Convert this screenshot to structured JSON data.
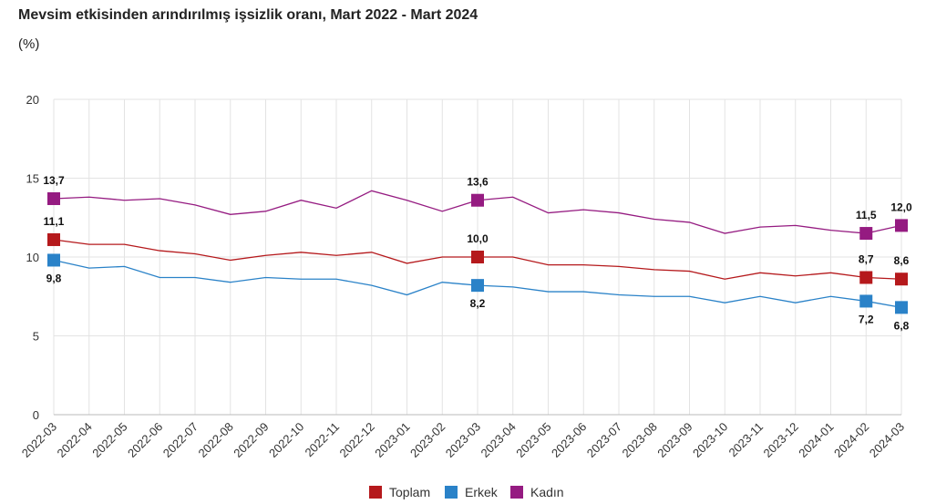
{
  "chart_data": {
    "type": "line",
    "title": "Mevsim etkisinden arındırılmış işsizlik oranı, Mart 2022 - Mart 2024",
    "ylabel": "(%)",
    "ylim": [
      0,
      20
    ],
    "yticks": [
      0,
      5,
      10,
      15,
      20
    ],
    "grid": true,
    "legend": "bottom",
    "x": [
      "2022-03",
      "2022-04",
      "2022-05",
      "2022-06",
      "2022-07",
      "2022-08",
      "2022-09",
      "2022-10",
      "2022-11",
      "2022-12",
      "2023-01",
      "2023-02",
      "2023-03",
      "2023-04",
      "2023-05",
      "2023-06",
      "2023-07",
      "2023-08",
      "2023-09",
      "2023-10",
      "2023-11",
      "2023-12",
      "2024-01",
      "2024-02",
      "2024-03"
    ],
    "series": [
      {
        "name": "Toplam",
        "color": "#b5191c",
        "values": [
          11.1,
          10.8,
          10.8,
          10.4,
          10.2,
          9.8,
          10.1,
          10.3,
          10.1,
          10.3,
          9.6,
          10.0,
          10.0,
          10.0,
          9.5,
          9.5,
          9.4,
          9.2,
          9.1,
          8.6,
          9.0,
          8.8,
          9.0,
          8.7,
          8.6
        ],
        "labels": {
          "0": "11,1",
          "12": "10,0",
          "23": "8,7",
          "24": "8,6"
        },
        "labelPos": "above"
      },
      {
        "name": "Erkek",
        "color": "#2a82c8",
        "values": [
          9.8,
          9.3,
          9.4,
          8.7,
          8.7,
          8.4,
          8.7,
          8.6,
          8.6,
          8.2,
          7.6,
          8.4,
          8.2,
          8.1,
          7.8,
          7.8,
          7.6,
          7.5,
          7.5,
          7.1,
          7.5,
          7.1,
          7.5,
          7.2,
          6.8
        ],
        "labels": {
          "0": "9,8",
          "12": "8,2",
          "23": "7,2",
          "24": "6,8"
        },
        "labelPos": "below"
      },
      {
        "name": "Kadın",
        "color": "#951b81",
        "values": [
          13.7,
          13.8,
          13.6,
          13.7,
          13.3,
          12.7,
          12.9,
          13.6,
          13.1,
          14.2,
          13.6,
          12.9,
          13.6,
          13.8,
          12.8,
          13.0,
          12.8,
          12.4,
          12.2,
          11.5,
          11.9,
          12.0,
          11.7,
          11.5,
          12.0
        ],
        "labels": {
          "0": "13,7",
          "12": "13,6",
          "23": "11,5",
          "24": "12,0"
        },
        "labelPos": "above"
      }
    ]
  }
}
